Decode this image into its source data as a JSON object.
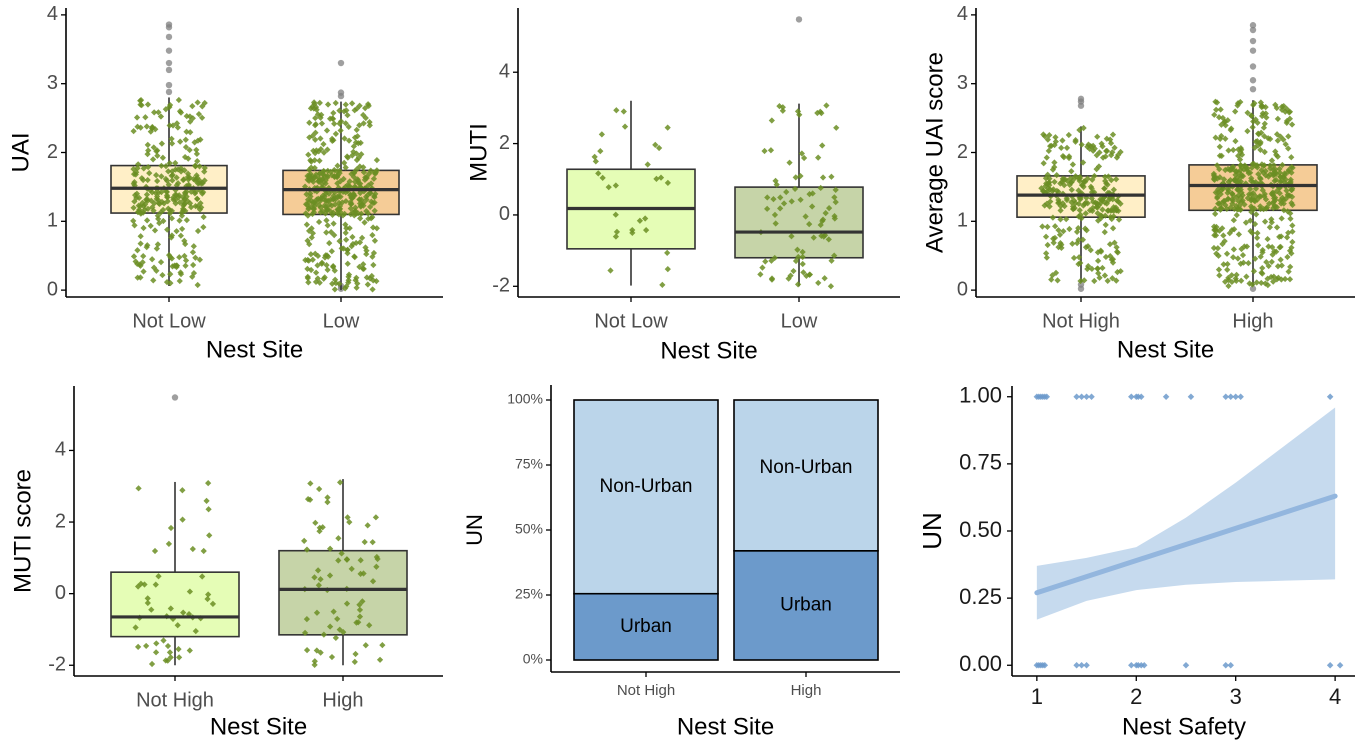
{
  "colors": {
    "jitter_uai": "#E8891C",
    "jitter_muti": "#6B8E23",
    "outlier": "#7f7f7f",
    "box_line": "#333333",
    "urban_fill": "#6C9ACB",
    "nonurban_fill": "#BBD5EA",
    "ribbon": "#B3CDE8",
    "trend_line": "#93B6DE",
    "point_blue": "#6C9ACB"
  },
  "chart_data": [
    {
      "type": "box",
      "xlabel": "Nest Site",
      "ylabel": "UAI",
      "ylim": [
        -0.1,
        4.1
      ],
      "yticks": [
        0,
        1,
        2,
        3,
        4
      ],
      "categories": [
        "Not Low",
        "Low"
      ],
      "box_fills": [
        "#FFEFC7",
        "#F5CC97"
      ],
      "boxes": [
        {
          "q1": 1.12,
          "median": 1.48,
          "q3": 1.81,
          "whisker_low": 0.06,
          "whisker_high": 2.8,
          "outliers": [
            2.88,
            2.98,
            3.2,
            3.3,
            3.48,
            3.68,
            3.82,
            3.86
          ],
          "n": 300
        },
        {
          "q1": 1.1,
          "median": 1.46,
          "q3": 1.74,
          "whisker_low": 0.0,
          "whisker_high": 2.74,
          "outliers": [
            2.82,
            2.87,
            3.3,
            0.02,
            0.06
          ],
          "n": 430
        }
      ]
    },
    {
      "type": "box",
      "xlabel": "Nest Site",
      "ylabel": "MUTI",
      "ylim": [
        -2.3,
        5.8
      ],
      "yticks": [
        -2,
        0,
        2,
        4
      ],
      "categories": [
        "Not Low",
        "Low"
      ],
      "box_fills": [
        "#E5FDB6",
        "#C6D4A8"
      ],
      "boxes": [
        {
          "q1": -0.95,
          "median": 0.18,
          "q3": 1.28,
          "whisker_low": -1.98,
          "whisker_high": 3.2,
          "outliers": [],
          "n": 30
        },
        {
          "q1": -1.2,
          "median": -0.48,
          "q3": 0.78,
          "whisker_low": -2.0,
          "whisker_high": 3.12,
          "outliers": [
            5.48
          ],
          "n": 85
        }
      ]
    },
    {
      "type": "box",
      "xlabel": "Nest Site",
      "ylabel": "Average UAI score",
      "ylim": [
        -0.1,
        4.1
      ],
      "yticks": [
        0,
        1,
        2,
        3,
        4
      ],
      "categories": [
        "Not High",
        "High"
      ],
      "box_fills": [
        "#FFEFC7",
        "#F5CC97"
      ],
      "boxes": [
        {
          "q1": 1.06,
          "median": 1.38,
          "q3": 1.66,
          "whisker_low": 0.12,
          "whisker_high": 2.38,
          "outliers": [
            2.68,
            2.74,
            2.78,
            0.02,
            0.08
          ],
          "n": 290
        },
        {
          "q1": 1.16,
          "median": 1.52,
          "q3": 1.82,
          "whisker_low": 0.06,
          "whisker_high": 2.76,
          "outliers": [
            2.92,
            3.05,
            3.25,
            3.48,
            3.62,
            3.78,
            3.85,
            0.02
          ],
          "n": 450
        }
      ]
    },
    {
      "type": "box",
      "xlabel": "Nest Site",
      "ylabel": "MUTI score",
      "ylim": [
        -2.3,
        5.8
      ],
      "yticks": [
        -2,
        0,
        2,
        4
      ],
      "categories": [
        "Not High",
        "High"
      ],
      "box_fills": [
        "#E5FDB6",
        "#C6D4A8"
      ],
      "boxes": [
        {
          "q1": -1.2,
          "median": -0.65,
          "q3": 0.6,
          "whisker_low": -2.0,
          "whisker_high": 3.12,
          "outliers": [
            5.48
          ],
          "n": 50
        },
        {
          "q1": -1.15,
          "median": 0.12,
          "q3": 1.2,
          "whisker_low": -2.0,
          "whisker_high": 3.2,
          "outliers": [],
          "n": 70
        }
      ]
    },
    {
      "type": "bar",
      "stacked": "percent",
      "xlabel": "Nest Site",
      "ylabel": "UN",
      "categories": [
        "Not High",
        "High"
      ],
      "yticks": [
        "0%",
        "25%",
        "50%",
        "75%",
        "100%"
      ],
      "series": [
        {
          "name": "Urban",
          "values": [
            0.255,
            0.42
          ]
        },
        {
          "name": "Non-Urban",
          "values": [
            0.745,
            0.58
          ]
        }
      ]
    },
    {
      "type": "scatter",
      "xlabel": "Nest Safety",
      "ylabel": "UN",
      "xlim": [
        0.75,
        4.2
      ],
      "ylim": [
        -0.04,
        1.04
      ],
      "xticks": [
        1,
        2,
        3,
        4
      ],
      "yticks": [
        "0.00",
        "0.25",
        "0.50",
        "0.75",
        "1.00"
      ],
      "points_at_1": [
        1.0,
        1.02,
        1.04,
        1.06,
        1.08,
        1.1,
        1.4,
        1.45,
        1.5,
        1.55,
        1.95,
        2.0,
        2.02,
        2.05,
        2.3,
        2.55,
        2.9,
        2.95,
        3.0,
        3.05,
        3.95
      ],
      "points_at_0": [
        1.0,
        1.02,
        1.04,
        1.06,
        1.08,
        1.4,
        1.45,
        1.5,
        1.95,
        2.0,
        2.02,
        2.05,
        2.08,
        2.5,
        2.9,
        2.95,
        3.95,
        4.05
      ],
      "trend": {
        "x": [
          1,
          4
        ],
        "y": [
          0.27,
          0.63
        ]
      },
      "ci_low": [
        [
          1,
          0.17
        ],
        [
          1.5,
          0.24
        ],
        [
          2,
          0.28
        ],
        [
          2.5,
          0.3
        ],
        [
          3,
          0.31
        ],
        [
          3.5,
          0.315
        ],
        [
          4,
          0.32
        ]
      ],
      "ci_high": [
        [
          1,
          0.37
        ],
        [
          1.5,
          0.4
        ],
        [
          2,
          0.44
        ],
        [
          2.5,
          0.55
        ],
        [
          3,
          0.68
        ],
        [
          3.5,
          0.82
        ],
        [
          4,
          0.96
        ]
      ]
    }
  ]
}
